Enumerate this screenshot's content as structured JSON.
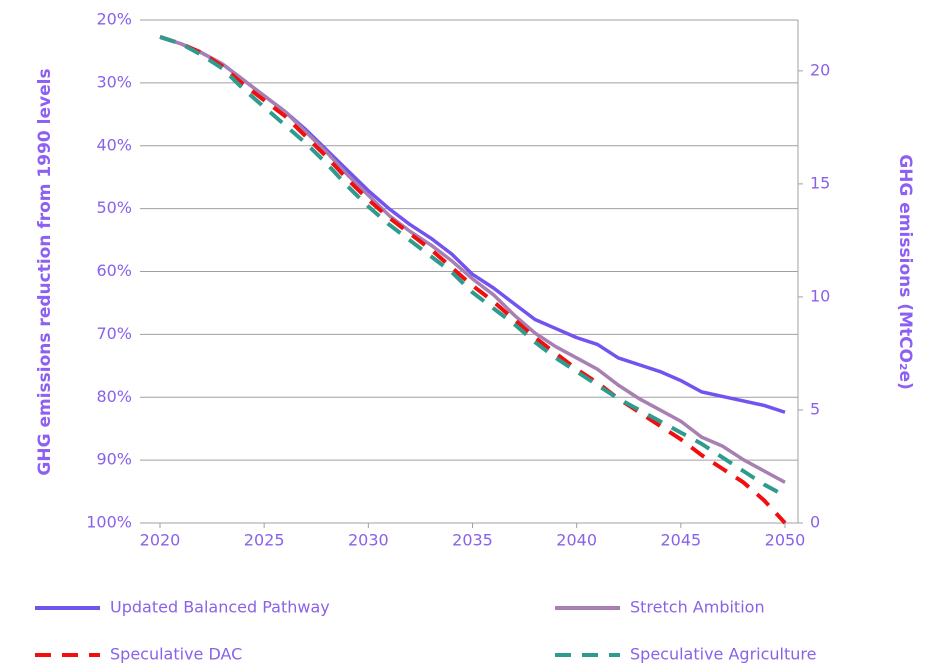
{
  "chart_data": {
    "type": "line",
    "ylabel": "GHG emissions reduction from 1990 levels",
    "y2label": "GHG emissions (MtCO₂e)",
    "x": [
      2020,
      2021,
      2022,
      2023,
      2024,
      2025,
      2026,
      2027,
      2028,
      2029,
      2030,
      2031,
      2032,
      2033,
      2034,
      2035,
      2036,
      2037,
      2038,
      2039,
      2040,
      2041,
      2042,
      2043,
      2044,
      2045,
      2046,
      2047,
      2048,
      2049,
      2050
    ],
    "xlim": [
      2020,
      2050
    ],
    "xticks": [
      2020,
      2025,
      2030,
      2035,
      2040,
      2045,
      2050
    ],
    "ylim": [
      100,
      20
    ],
    "yticks": [
      {
        "value": 20,
        "label": "20%"
      },
      {
        "value": 30,
        "label": "30%"
      },
      {
        "value": 40,
        "label": "40%"
      },
      {
        "value": 50,
        "label": "50%"
      },
      {
        "value": 60,
        "label": "60%"
      },
      {
        "value": 70,
        "label": "70%"
      },
      {
        "value": 80,
        "label": "80%"
      },
      {
        "value": 90,
        "label": "90%"
      },
      {
        "value": 100,
        "label": "100%"
      }
    ],
    "y2lim": [
      0,
      22.25
    ],
    "y2ticks": [
      0,
      5,
      10,
      15,
      20
    ],
    "grid": true,
    "series": [
      {
        "name": "Updated Balanced Pathway",
        "color": "#7253f0",
        "dashed": false,
        "axis": "y2",
        "values": [
          21.5,
          21.2,
          20.8,
          20.3,
          19.6,
          18.9,
          18.2,
          17.4,
          16.5,
          15.6,
          14.7,
          13.9,
          13.2,
          12.6,
          11.9,
          11.0,
          10.4,
          9.7,
          9.0,
          8.6,
          8.2,
          7.9,
          7.3,
          7.0,
          6.7,
          6.3,
          5.8,
          5.6,
          5.4,
          5.2,
          4.9
        ]
      },
      {
        "name": "Stretch Ambition",
        "color": "#a77fb1",
        "dashed": false,
        "axis": "y2",
        "values": [
          21.5,
          21.2,
          20.8,
          20.3,
          19.6,
          18.9,
          18.2,
          17.3,
          16.4,
          15.4,
          14.5,
          13.6,
          12.9,
          12.3,
          11.6,
          10.8,
          10.1,
          9.2,
          8.4,
          7.8,
          7.3,
          6.8,
          6.1,
          5.5,
          5.0,
          4.5,
          3.8,
          3.4,
          2.8,
          2.3,
          1.8
        ]
      },
      {
        "name": "Speculative DAC",
        "color": "#f20e0e",
        "dashed": true,
        "axis": "y2",
        "values": [
          21.5,
          21.2,
          20.8,
          20.2,
          19.4,
          18.7,
          18.0,
          17.1,
          16.2,
          15.2,
          14.3,
          13.5,
          12.8,
          12.1,
          11.3,
          10.5,
          9.8,
          9.0,
          8.2,
          7.5,
          6.8,
          6.2,
          5.5,
          4.9,
          4.3,
          3.7,
          3.0,
          2.4,
          1.8,
          1.0,
          0
        ]
      },
      {
        "name": "Speculative Agriculture",
        "color": "#2f9b8f",
        "dashed": true,
        "axis": "y2",
        "values": [
          21.5,
          21.2,
          20.7,
          20.1,
          19.2,
          18.4,
          17.6,
          16.8,
          15.9,
          14.9,
          14.0,
          13.2,
          12.5,
          11.8,
          11.1,
          10.2,
          9.5,
          8.8,
          8.0,
          7.3,
          6.7,
          6.1,
          5.5,
          5.0,
          4.5,
          4.0,
          3.5,
          2.9,
          2.3,
          1.7,
          1.2
        ]
      }
    ]
  }
}
